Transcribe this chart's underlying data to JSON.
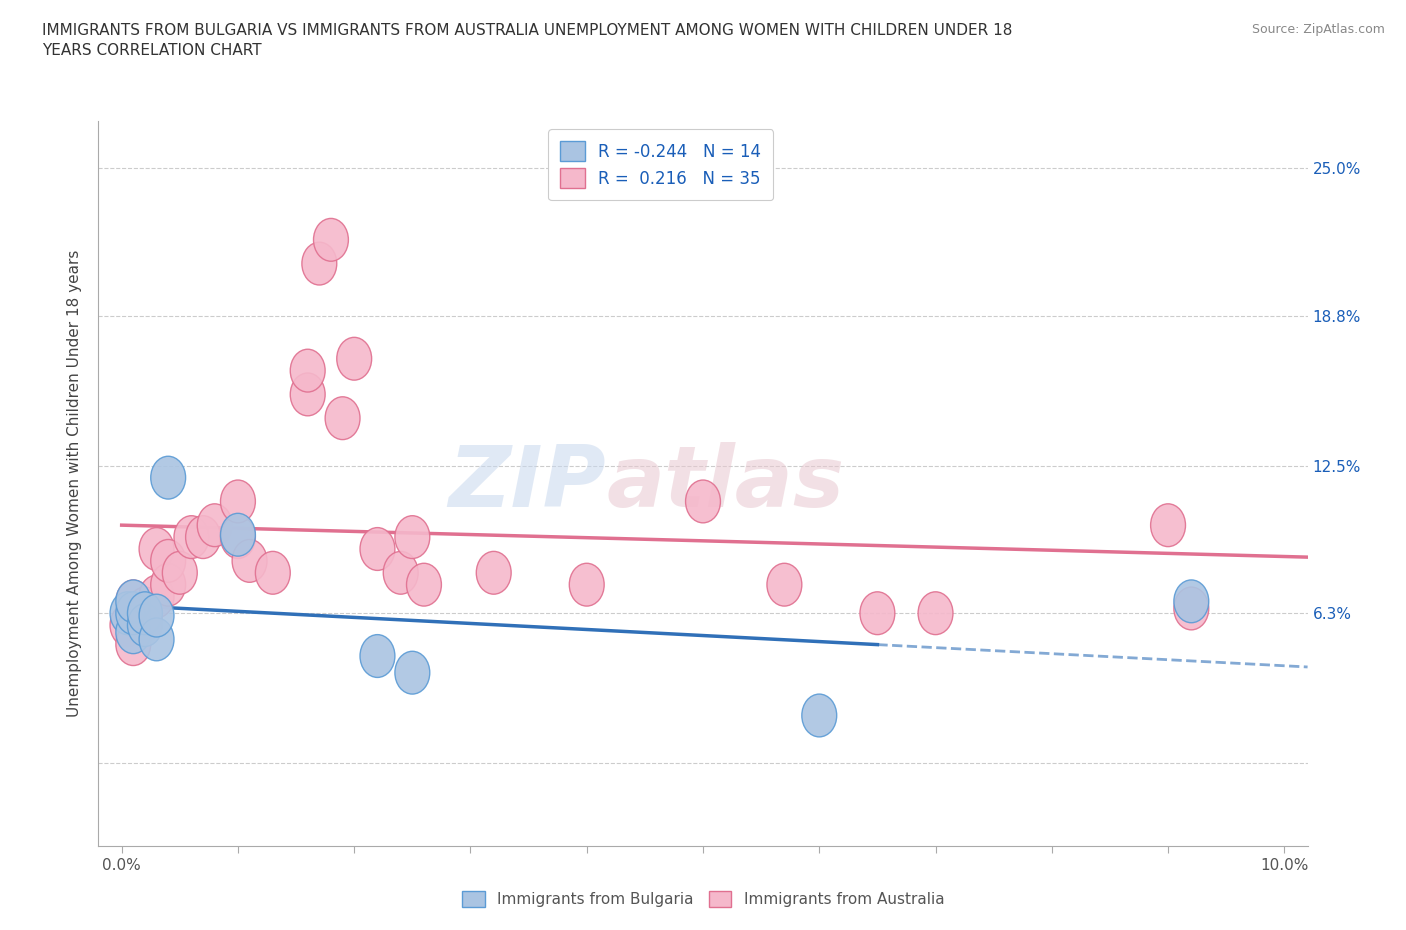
{
  "title": "IMMIGRANTS FROM BULGARIA VS IMMIGRANTS FROM AUSTRALIA UNEMPLOYMENT AMONG WOMEN WITH CHILDREN UNDER 18\nYEARS CORRELATION CHART",
  "source": "Source: ZipAtlas.com",
  "ylabel": "Unemployment Among Women with Children Under 18 years",
  "watermark_zip": "ZIP",
  "watermark_atlas": "atlas",
  "bulgaria_color": "#aac4e2",
  "australia_color": "#f5b8cb",
  "bulgaria_edge": "#5b9bd5",
  "australia_edge": "#e07090",
  "trend_bulgaria_color": "#3070b8",
  "trend_australia_color": "#e07090",
  "R_bulgaria": -0.244,
  "N_bulgaria": 14,
  "R_australia": 0.216,
  "N_australia": 35,
  "bulgaria_x": [
    0.0005,
    0.001,
    0.001,
    0.001,
    0.002,
    0.002,
    0.003,
    0.003,
    0.004,
    0.01,
    0.022,
    0.025,
    0.06,
    0.092
  ],
  "bulgaria_y": [
    0.063,
    0.055,
    0.063,
    0.068,
    0.058,
    0.063,
    0.052,
    0.062,
    0.12,
    0.096,
    0.045,
    0.038,
    0.02,
    0.068
  ],
  "australia_x": [
    0.0005,
    0.001,
    0.001,
    0.002,
    0.002,
    0.003,
    0.003,
    0.004,
    0.004,
    0.005,
    0.006,
    0.007,
    0.008,
    0.01,
    0.01,
    0.011,
    0.013,
    0.016,
    0.016,
    0.017,
    0.018,
    0.019,
    0.02,
    0.022,
    0.024,
    0.025,
    0.026,
    0.032,
    0.04,
    0.05,
    0.057,
    0.065,
    0.07,
    0.09,
    0.092
  ],
  "australia_y": [
    0.058,
    0.05,
    0.068,
    0.06,
    0.065,
    0.07,
    0.09,
    0.075,
    0.085,
    0.08,
    0.095,
    0.095,
    0.1,
    0.095,
    0.11,
    0.085,
    0.08,
    0.155,
    0.165,
    0.21,
    0.22,
    0.145,
    0.17,
    0.09,
    0.08,
    0.095,
    0.075,
    0.08,
    0.075,
    0.11,
    0.075,
    0.063,
    0.063,
    0.1,
    0.065
  ],
  "background_color": "#ffffff",
  "grid_color": "#cccccc",
  "xlim": [
    -0.002,
    0.102
  ],
  "ylim": [
    -0.035,
    0.27
  ],
  "ytick_vals": [
    0.0,
    0.063,
    0.125,
    0.188,
    0.25
  ],
  "ytick_labels_right": [
    "",
    "6.3%",
    "12.5%",
    "18.8%",
    "25.0%"
  ]
}
